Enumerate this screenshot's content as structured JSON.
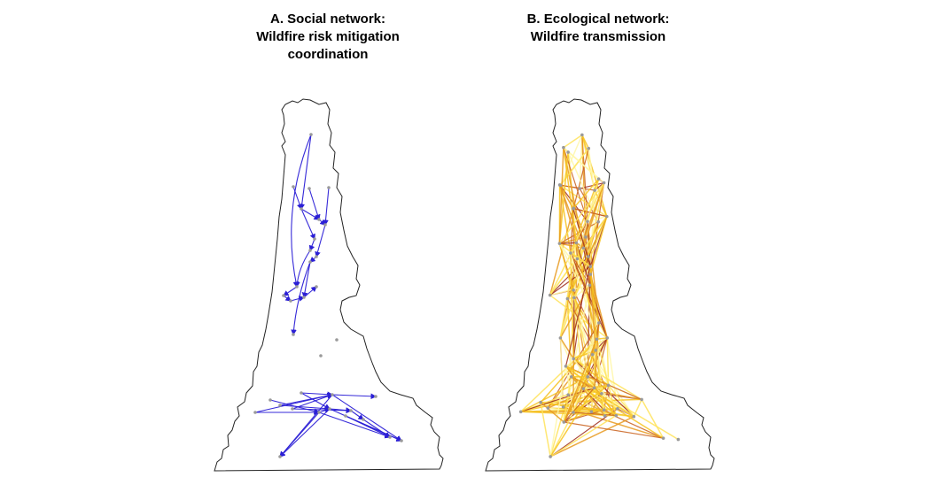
{
  "panels": {
    "a": {
      "title": "A. Social network:\nWildfire risk mitigation\ncoordination"
    },
    "b": {
      "title": "B. Ecological network:\nWildfire transmission"
    }
  },
  "colors": {
    "outline": "#222222",
    "node": "#9a9a9a",
    "social_edge": "#2b1fd6",
    "fire_edges": [
      "#fff7a8",
      "#ffe35a",
      "#f7c320",
      "#e89a20",
      "#c9601c",
      "#9c2a1a"
    ]
  }
}
